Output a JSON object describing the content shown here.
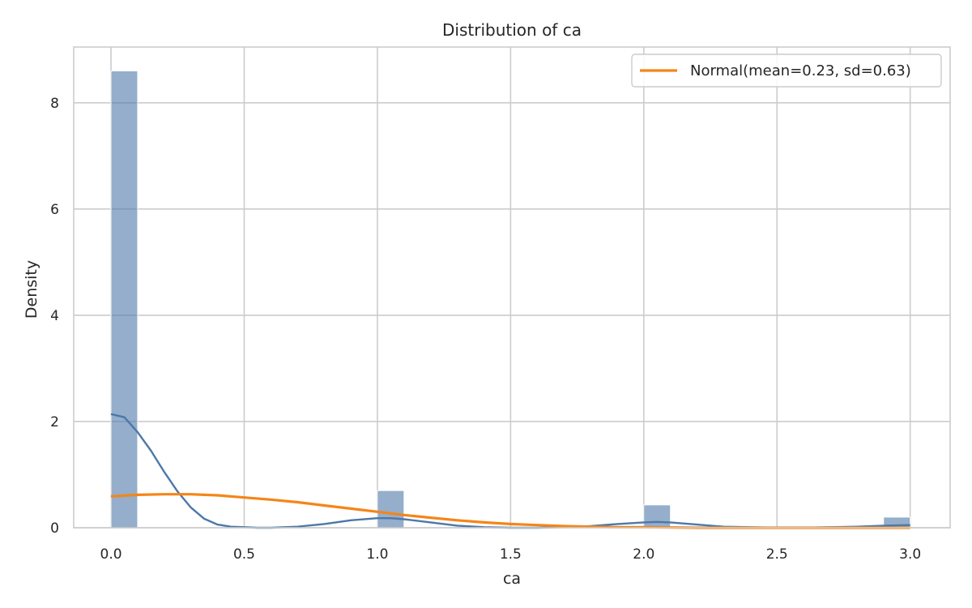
{
  "colors": {
    "hist": "#4c78a8",
    "kde": "#4c78a8",
    "normal": "#f58518",
    "grid": "#cccccc",
    "frame": "#cccccc"
  },
  "chart_data": {
    "type": "bar",
    "title": "Distribution of ca",
    "xlabel": "ca",
    "ylabel": "Density",
    "xlim": [
      -0.14,
      3.15
    ],
    "ylim": [
      0,
      9.05
    ],
    "xticks": [
      0.0,
      0.5,
      1.0,
      1.5,
      2.0,
      2.5,
      3.0
    ],
    "xtick_labels": [
      "0.0",
      "0.5",
      "1.0",
      "1.5",
      "2.0",
      "2.5",
      "3.0"
    ],
    "yticks": [
      0,
      2,
      4,
      6,
      8
    ],
    "ytick_labels": [
      "0",
      "2",
      "4",
      "6",
      "8"
    ],
    "grid": true,
    "legend": {
      "placement": "top-right",
      "entries": [
        "Normal(mean=0.23, sd=0.63)"
      ]
    },
    "histogram": {
      "bin_width": 0.1,
      "bins": [
        {
          "x0": 0.0,
          "x1": 0.1,
          "density": 8.6
        },
        {
          "x0": 1.0,
          "x1": 1.1,
          "density": 0.7
        },
        {
          "x0": 2.0,
          "x1": 2.1,
          "density": 0.43
        },
        {
          "x0": 2.9,
          "x1": 3.0,
          "density": 0.2
        }
      ]
    },
    "kde": {
      "x": [
        0.0,
        0.05,
        0.1,
        0.15,
        0.2,
        0.25,
        0.3,
        0.35,
        0.4,
        0.45,
        0.5,
        0.55,
        0.6,
        0.7,
        0.8,
        0.9,
        1.0,
        1.05,
        1.1,
        1.2,
        1.3,
        1.4,
        1.5,
        1.6,
        1.7,
        1.8,
        1.9,
        2.0,
        2.05,
        2.1,
        2.2,
        2.3,
        2.4,
        2.5,
        2.6,
        2.7,
        2.8,
        2.9,
        3.0
      ],
      "y": [
        2.14,
        2.08,
        1.8,
        1.45,
        1.05,
        0.68,
        0.38,
        0.17,
        0.06,
        0.02,
        0.01,
        0.0,
        0.0,
        0.02,
        0.07,
        0.14,
        0.18,
        0.18,
        0.16,
        0.1,
        0.04,
        0.01,
        0.0,
        0.0,
        0.01,
        0.03,
        0.07,
        0.1,
        0.11,
        0.1,
        0.06,
        0.02,
        0.01,
        0.0,
        0.0,
        0.01,
        0.02,
        0.04,
        0.05
      ]
    },
    "series": [
      {
        "name": "Normal(mean=0.23, sd=0.63)",
        "x": [
          0.0,
          0.1,
          0.2,
          0.3,
          0.4,
          0.5,
          0.6,
          0.7,
          0.8,
          0.9,
          1.0,
          1.1,
          1.2,
          1.3,
          1.4,
          1.5,
          1.6,
          1.7,
          1.8,
          1.9,
          2.0,
          2.2,
          2.4,
          2.6,
          2.8,
          3.0
        ],
        "y": [
          0.59,
          0.62,
          0.63,
          0.63,
          0.61,
          0.57,
          0.53,
          0.48,
          0.42,
          0.36,
          0.3,
          0.24,
          0.19,
          0.14,
          0.1,
          0.07,
          0.05,
          0.03,
          0.02,
          0.01,
          0.01,
          0.0,
          0.0,
          0.0,
          0.0,
          0.0
        ]
      }
    ]
  }
}
